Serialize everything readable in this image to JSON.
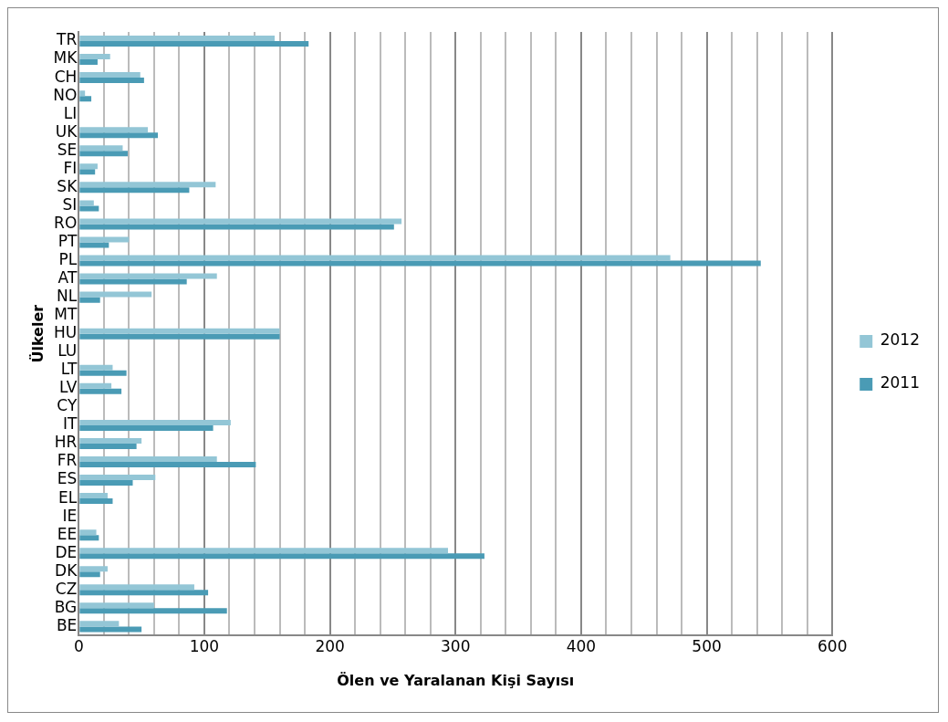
{
  "chart_data": {
    "type": "bar",
    "orientation": "horizontal",
    "xlabel": "Ölen ve Yaralanan Kişi Sayısı",
    "ylabel": "Ülkeler",
    "categories": [
      "TR",
      "MK",
      "CH",
      "NO",
      "LI",
      "UK",
      "SE",
      "FI",
      "SK",
      "SI",
      "RO",
      "PT",
      "PL",
      "AT",
      "NL",
      "MT",
      "HU",
      "LU",
      "LT",
      "LV",
      "CY",
      "IT",
      "HR",
      "FR",
      "ES",
      "EL",
      "IE",
      "EE",
      "DE",
      "DK",
      "CZ",
      "BG",
      "BE"
    ],
    "series": [
      {
        "name": "2012",
        "color": "#93c6d6",
        "values": [
          156,
          25,
          49,
          5,
          null,
          55,
          35,
          15,
          109,
          12,
          257,
          40,
          471,
          110,
          58,
          null,
          160,
          null,
          27,
          26,
          null,
          121,
          50,
          110,
          61,
          23,
          null,
          14,
          294,
          23,
          92,
          60,
          32
        ]
      },
      {
        "name": "2011",
        "color": "#4a9bb5",
        "values": [
          183,
          15,
          52,
          10,
          null,
          63,
          39,
          13,
          88,
          16,
          251,
          24,
          543,
          86,
          17,
          null,
          160,
          null,
          38,
          34,
          null,
          107,
          46,
          141,
          43,
          27,
          null,
          16,
          323,
          17,
          103,
          118,
          50
        ]
      }
    ],
    "xlim": [
      0,
      600
    ],
    "xticks": [
      0,
      {
        "value": 20,
        "label": null
      },
      {
        "value": 40,
        "label": null
      },
      {
        "value": 60,
        "label": null
      },
      {
        "value": 80,
        "label": null
      },
      100,
      {
        "value": 120,
        "label": null
      },
      {
        "value": 140,
        "label": null
      },
      {
        "value": 160,
        "label": null
      },
      {
        "value": 180,
        "label": null
      },
      200,
      {
        "value": 220,
        "label": null
      },
      {
        "value": 240,
        "label": null
      },
      {
        "value": 260,
        "label": null
      },
      {
        "value": 280,
        "label": null
      },
      300,
      {
        "value": 320,
        "label": null
      },
      {
        "value": 340,
        "label": null
      },
      {
        "value": 360,
        "label": null
      },
      {
        "value": 380,
        "label": null
      },
      400,
      {
        "value": 420,
        "label": null
      },
      {
        "value": 440,
        "label": null
      },
      {
        "value": 460,
        "label": null
      },
      {
        "value": 480,
        "label": null
      },
      500,
      {
        "value": 520,
        "label": null
      },
      {
        "value": 540,
        "label": null
      },
      {
        "value": 560,
        "label": null
      },
      {
        "value": 580,
        "label": null
      },
      600
    ],
    "grid": "x",
    "legend": "right"
  }
}
